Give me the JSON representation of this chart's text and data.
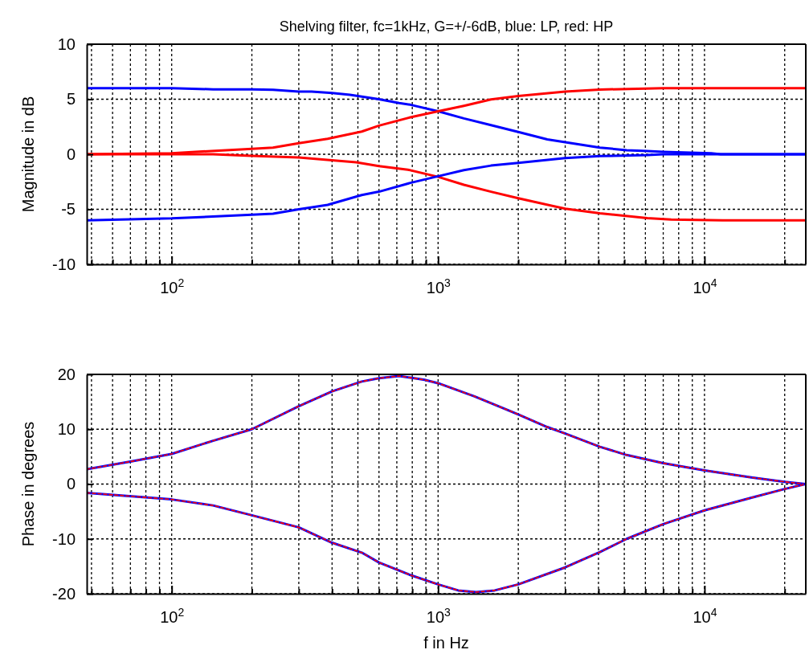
{
  "chart_data": [
    {
      "type": "line",
      "title": "Shelving filter, fc=1kHz, G=+/-6dB, blue: LP, red: HP",
      "ylabel": "Magnitude in dB",
      "log": "x",
      "grid": true,
      "xlim": [
        48,
        24000
      ],
      "ylim": [
        -10,
        10
      ],
      "yticks": [
        -10,
        -5,
        0,
        5,
        10
      ],
      "xticks": [
        {
          "value": 50,
          "label": null
        },
        {
          "value": 60,
          "label": null
        },
        {
          "value": 70,
          "label": null
        },
        {
          "value": 80,
          "label": null
        },
        {
          "value": 90,
          "label": null
        },
        {
          "value": 100,
          "label": "10$^{2}$"
        },
        {
          "value": 200,
          "label": null
        },
        {
          "value": 300,
          "label": null
        },
        {
          "value": 400,
          "label": null
        },
        {
          "value": 500,
          "label": null
        },
        {
          "value": 600,
          "label": null
        },
        {
          "value": 700,
          "label": null
        },
        {
          "value": 800,
          "label": null
        },
        {
          "value": 900,
          "label": null
        },
        {
          "value": 1000,
          "label": "10$^{3}$"
        },
        {
          "value": 2000,
          "label": null
        },
        {
          "value": 3000,
          "label": null
        },
        {
          "value": 4000,
          "label": null
        },
        {
          "value": 5000,
          "label": null
        },
        {
          "value": 6000,
          "label": null
        },
        {
          "value": 7000,
          "label": null
        },
        {
          "value": 8000,
          "label": null
        },
        {
          "value": 9000,
          "label": null
        },
        {
          "value": 10000,
          "label": "10$^{4}$"
        },
        {
          "value": 20000,
          "label": null
        }
      ],
      "series": [
        {
          "color": "#0000ff",
          "line_style": "solid",
          "x": [
            48,
            100,
            143,
            200,
            240,
            300,
            335,
            400,
            467,
            600,
            714,
            787,
            1000,
            1250,
            1580,
            2000,
            2570,
            3000,
            4050,
            5100,
            6100,
            7000,
            10600,
            11500,
            24000
          ],
          "values": [
            6.0,
            6.0,
            5.9,
            5.9,
            5.86,
            5.7,
            5.7,
            5.57,
            5.4,
            5.0,
            4.66,
            4.5,
            3.9,
            3.26,
            2.65,
            2.03,
            1.35,
            1.1,
            0.61,
            0.37,
            0.29,
            0.22,
            0.1,
            0,
            0
          ]
        },
        {
          "color": "#ff0000",
          "line_style": "solid",
          "x": [
            48,
            100,
            200,
            240,
            300,
            385,
            517,
            600,
            787,
            1000,
            1250,
            1580,
            2000,
            3000,
            4050,
            7000,
            24000
          ],
          "values": [
            0,
            0.1,
            0.5,
            0.6,
            1.0,
            1.4,
            2.06,
            2.6,
            3.36,
            3.9,
            4.4,
            4.98,
            5.3,
            5.7,
            5.88,
            6.0,
            6.0
          ]
        },
        {
          "color": "#ff0000",
          "line_style": "solid",
          "x": [
            48,
            143,
            200,
            300,
            400,
            493,
            600,
            770,
            1000,
            1250,
            1580,
            2000,
            3000,
            4050,
            6100,
            7500,
            11700,
            24000
          ],
          "values": [
            0,
            0,
            -0.15,
            -0.3,
            -0.55,
            -0.73,
            -1.07,
            -1.4,
            -2.05,
            -2.77,
            -3.4,
            -4.0,
            -4.95,
            -5.37,
            -5.8,
            -5.93,
            -6.0,
            -6.0
          ]
        },
        {
          "color": "#0000ff",
          "line_style": "solid",
          "x": [
            48,
            100,
            200,
            240,
            300,
            385,
            517,
            600,
            787,
            1000,
            1250,
            1580,
            2000,
            3000,
            4050,
            6100,
            7000,
            24000
          ],
          "values": [
            -6.0,
            -5.83,
            -5.5,
            -5.4,
            -5.0,
            -4.6,
            -3.7,
            -3.4,
            -2.6,
            -2.0,
            -1.44,
            -1.03,
            -0.78,
            -0.34,
            -0.17,
            -0.07,
            0,
            0
          ]
        }
      ]
    },
    {
      "type": "line",
      "xlabel": "f in Hz",
      "ylabel": "Phase in degrees",
      "log": "x",
      "grid": true,
      "xlim": [
        48,
        24000
      ],
      "ylim": [
        -20,
        20
      ],
      "yticks": [
        -20,
        -10,
        0,
        10,
        20
      ],
      "xticks": [
        {
          "value": 50,
          "label": null
        },
        {
          "value": 60,
          "label": null
        },
        {
          "value": 70,
          "label": null
        },
        {
          "value": 80,
          "label": null
        },
        {
          "value": 90,
          "label": null
        },
        {
          "value": 100,
          "label": "10$^{2}$"
        },
        {
          "value": 200,
          "label": null
        },
        {
          "value": 300,
          "label": null
        },
        {
          "value": 400,
          "label": null
        },
        {
          "value": 500,
          "label": null
        },
        {
          "value": 600,
          "label": null
        },
        {
          "value": 700,
          "label": null
        },
        {
          "value": 800,
          "label": null
        },
        {
          "value": 900,
          "label": null
        },
        {
          "value": 1000,
          "label": "10$^{3}$"
        },
        {
          "value": 2000,
          "label": null
        },
        {
          "value": 3000,
          "label": null
        },
        {
          "value": 4000,
          "label": null
        },
        {
          "value": 5000,
          "label": null
        },
        {
          "value": 6000,
          "label": null
        },
        {
          "value": 7000,
          "label": null
        },
        {
          "value": 8000,
          "label": null
        },
        {
          "value": 9000,
          "label": null
        },
        {
          "value": 10000,
          "label": "10$^{4}$"
        },
        {
          "value": 20000,
          "label": null
        }
      ],
      "series": [
        {
          "color": "#0000ff",
          "line_style": "solid",
          "x": [
            48,
            70,
            100,
            143,
            200,
            300,
            400,
            517,
            600,
            714,
            787,
            890,
            1000,
            1370,
            2000,
            2570,
            3000,
            4050,
            5100,
            7000,
            10000,
            15000,
            20000,
            24000
          ],
          "values": [
            2.7,
            4.1,
            5.5,
            7.9,
            10.0,
            14.2,
            16.9,
            18.7,
            19.3,
            19.7,
            19.4,
            19.0,
            18.4,
            16.0,
            12.7,
            10.4,
            9.2,
            6.8,
            5.3,
            3.8,
            2.5,
            1.2,
            0.4,
            0
          ]
        },
        {
          "color": "#ff0000",
          "line_style": "dashed",
          "x": [
            48,
            70,
            100,
            143,
            200,
            300,
            400,
            517,
            600,
            714,
            787,
            890,
            1000,
            1370,
            2000,
            2570,
            3000,
            4050,
            5100,
            7000,
            10000,
            15000,
            20000,
            24000
          ],
          "values": [
            2.7,
            4.1,
            5.5,
            7.9,
            10.0,
            14.2,
            16.9,
            18.7,
            19.3,
            19.7,
            19.4,
            19.0,
            18.4,
            16.0,
            12.7,
            10.4,
            9.2,
            6.8,
            5.3,
            3.8,
            2.5,
            1.2,
            0.4,
            0
          ]
        },
        {
          "color": "#0000ff",
          "line_style": "solid",
          "x": [
            48,
            100,
            143,
            200,
            300,
            400,
            517,
            600,
            787,
            1000,
            1190,
            1390,
            1630,
            2000,
            3000,
            4050,
            5100,
            7000,
            10000,
            15000,
            20000,
            24000
          ],
          "values": [
            -1.6,
            -2.8,
            -3.9,
            -5.7,
            -7.9,
            -10.7,
            -12.5,
            -14.3,
            -16.6,
            -18.3,
            -19.4,
            -19.7,
            -19.4,
            -18.3,
            -15.2,
            -12.4,
            -10.0,
            -7.3,
            -4.8,
            -2.5,
            -0.9,
            0
          ]
        },
        {
          "color": "#ff0000",
          "line_style": "dashed",
          "x": [
            48,
            100,
            143,
            200,
            300,
            400,
            517,
            600,
            787,
            1000,
            1190,
            1390,
            1630,
            2000,
            3000,
            4050,
            5100,
            7000,
            10000,
            15000,
            20000,
            24000
          ],
          "values": [
            -1.6,
            -2.8,
            -3.9,
            -5.7,
            -7.9,
            -10.7,
            -12.5,
            -14.3,
            -16.6,
            -18.3,
            -19.4,
            -19.7,
            -19.4,
            -18.3,
            -15.2,
            -12.4,
            -10.0,
            -7.3,
            -4.8,
            -2.5,
            -0.9,
            0
          ]
        }
      ]
    }
  ]
}
